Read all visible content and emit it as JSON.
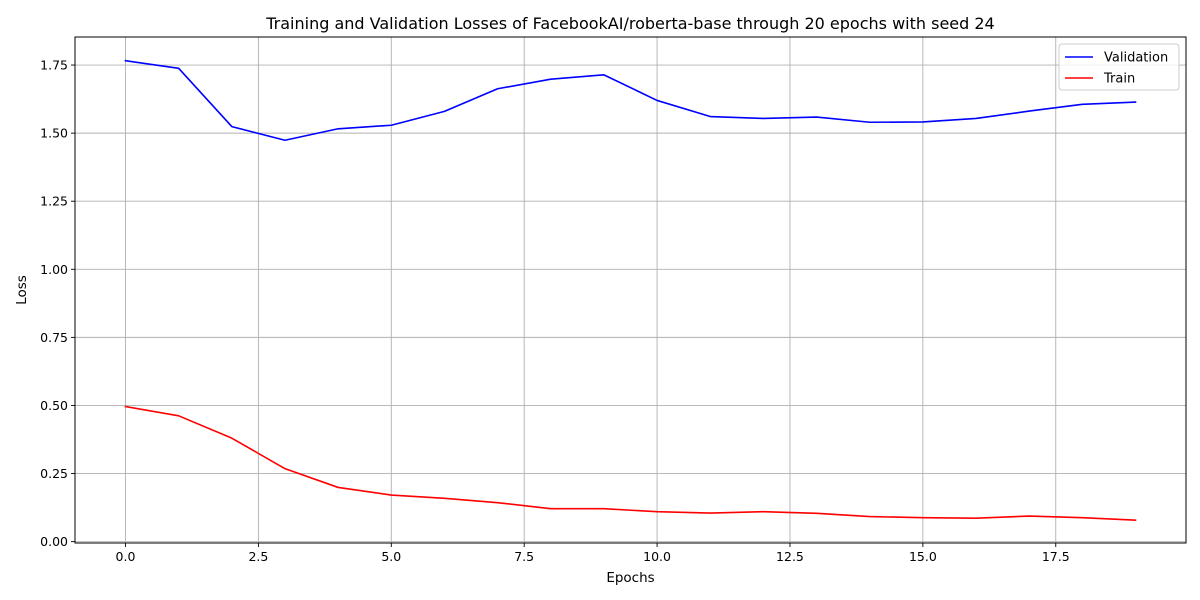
{
  "chart_data": {
    "type": "line",
    "title": "Training and Validation Losses of FacebookAI/roberta-base through 20 epochs with seed 24",
    "xlabel": "Epochs",
    "ylabel": "Loss",
    "xlim": [
      -0.95,
      19.95
    ],
    "ylim": [
      -0.005,
      1.853
    ],
    "xticks": [
      0.0,
      2.5,
      5.0,
      7.5,
      10.0,
      12.5,
      15.0,
      17.5
    ],
    "xtick_labels": [
      "0.0",
      "2.5",
      "5.0",
      "7.5",
      "10.0",
      "12.5",
      "15.0",
      "17.5"
    ],
    "yticks": [
      0.0,
      0.25,
      0.5,
      0.75,
      1.0,
      1.25,
      1.5,
      1.75
    ],
    "ytick_labels": [
      "0.00",
      "0.25",
      "0.50",
      "0.75",
      "1.00",
      "1.25",
      "1.50",
      "1.75"
    ],
    "grid": true,
    "legend_position": "top-right",
    "x": [
      0,
      1,
      2,
      3,
      4,
      5,
      6,
      7,
      8,
      9,
      10,
      11,
      12,
      13,
      14,
      15,
      16,
      17,
      18,
      19
    ],
    "series": [
      {
        "name": "Validation",
        "color": "#0000ff",
        "values": [
          1.766,
          1.738,
          1.524,
          1.474,
          1.516,
          1.529,
          1.58,
          1.663,
          1.698,
          1.714,
          1.62,
          1.561,
          1.554,
          1.559,
          1.54,
          1.541,
          1.554,
          1.581,
          1.606,
          1.614
        ]
      },
      {
        "name": "Train",
        "color": "#ff0000",
        "values": [
          0.496,
          0.462,
          0.38,
          0.268,
          0.199,
          0.171,
          0.159,
          0.143,
          0.121,
          0.121,
          0.11,
          0.105,
          0.11,
          0.104,
          0.092,
          0.088,
          0.086,
          0.094,
          0.088,
          0.079
        ]
      }
    ]
  }
}
